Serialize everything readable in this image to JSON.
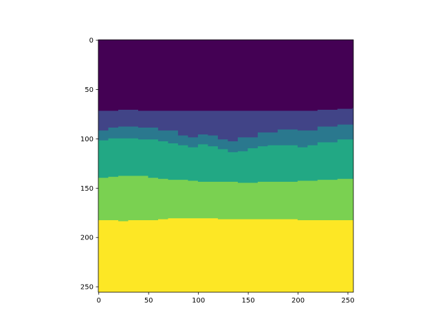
{
  "chart_data": {
    "type": "heatmap",
    "title": "",
    "xlabel": "",
    "ylabel": "",
    "x_range": [
      0,
      256
    ],
    "y_range": [
      256,
      0
    ],
    "y_inverted": true,
    "grid": false,
    "legend": "none",
    "colormap": "viridis",
    "x_ticks": [
      0,
      50,
      100,
      150,
      200,
      250
    ],
    "y_ticks": [
      0,
      50,
      100,
      150,
      200,
      250
    ],
    "x_tick_labels": [
      "0",
      "50",
      "100",
      "150",
      "200",
      "250"
    ],
    "y_tick_labels": [
      "0",
      "50",
      "100",
      "150",
      "200",
      "250"
    ],
    "layers": [
      {
        "color": "#440154",
        "boundary_x": [
          0,
          255
        ],
        "boundary_y": [
          0,
          0
        ]
      },
      {
        "color": "#414487",
        "boundary_x": [
          0,
          20,
          40,
          60,
          80,
          100,
          120,
          140,
          160,
          180,
          200,
          220,
          240,
          255
        ],
        "boundary_y": [
          72,
          71,
          72,
          72,
          72,
          72,
          72,
          72,
          72,
          72,
          72,
          71,
          70,
          69
        ]
      },
      {
        "color": "#2a788e",
        "boundary_x": [
          0,
          10,
          20,
          40,
          60,
          80,
          90,
          100,
          110,
          120,
          130,
          140,
          160,
          180,
          200,
          220,
          240,
          255
        ],
        "boundary_y": [
          92,
          89,
          88,
          89,
          92,
          97,
          99,
          96,
          97,
          101,
          103,
          99,
          94,
          91,
          92,
          88,
          86,
          86
        ]
      },
      {
        "color": "#22a884",
        "boundary_x": [
          0,
          10,
          20,
          40,
          60,
          70,
          80,
          90,
          100,
          110,
          120,
          130,
          140,
          150,
          160,
          170,
          180,
          190,
          200,
          210,
          220,
          240,
          255
        ],
        "boundary_y": [
          102,
          100,
          100,
          101,
          103,
          105,
          107,
          109,
          106,
          108,
          111,
          114,
          113,
          110,
          108,
          107,
          107,
          107,
          109,
          107,
          104,
          101,
          101
        ]
      },
      {
        "color": "#7ad151",
        "boundary_x": [
          0,
          10,
          20,
          30,
          40,
          50,
          60,
          70,
          80,
          90,
          100,
          120,
          140,
          160,
          180,
          200,
          220,
          240,
          255
        ],
        "boundary_y": [
          140,
          139,
          138,
          138,
          138,
          140,
          141,
          142,
          142,
          143,
          144,
          144,
          145,
          144,
          144,
          143,
          142,
          141,
          141
        ]
      },
      {
        "color": "#fde725",
        "boundary_x": [
          0,
          10,
          20,
          30,
          40,
          50,
          60,
          70,
          80,
          100,
          120,
          140,
          160,
          180,
          200,
          220,
          240,
          255
        ],
        "boundary_y": [
          183,
          183,
          184,
          183,
          183,
          183,
          182,
          181,
          181,
          181,
          182,
          182,
          182,
          182,
          183,
          183,
          183,
          183
        ]
      }
    ]
  }
}
